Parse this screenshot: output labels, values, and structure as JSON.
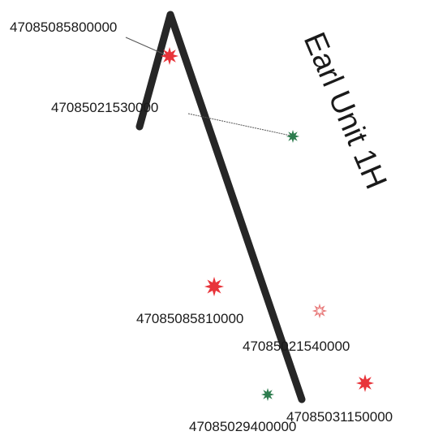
{
  "map": {
    "unit_name": "Earl Unit 1H",
    "lateral_color": "#262626",
    "leader_color": "#555555",
    "wells": [
      {
        "api": "47085085800000",
        "symbol": "star-red",
        "color": "#e8343a"
      },
      {
        "api": "47085021530000",
        "symbol": "star-green",
        "color": "#2e7d4f"
      },
      {
        "api": "47085085810000",
        "symbol": "star-red",
        "color": "#e8343a"
      },
      {
        "api": "47085021540000",
        "symbol": "star-hollow-red",
        "color": "#e87a7a"
      },
      {
        "api": "47085031150000",
        "symbol": "star-red",
        "color": "#e8343a"
      },
      {
        "api": "47085029400000",
        "symbol": "star-green",
        "color": "#2e7d4f"
      }
    ]
  }
}
